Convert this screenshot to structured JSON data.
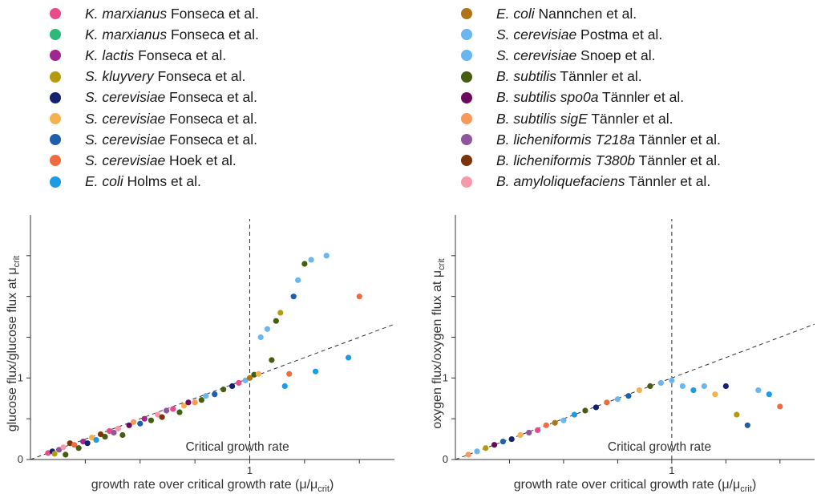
{
  "legend_left": [
    {
      "species": "K. marxianus",
      "source": " Fonseca et al.",
      "color": "#e84a8a"
    },
    {
      "species": "K. marxianus",
      "source": " Fonseca et al.",
      "color": "#2cba7a"
    },
    {
      "species": "K. lactis",
      "source": " Fonseca et al.",
      "color": "#a0278f"
    },
    {
      "species": "S. kluyvery",
      "source": " Fonseca et al.",
      "color": "#b59a0f"
    },
    {
      "species": "S. cerevisiae",
      "source": " Fonseca et al.",
      "color": "#13216e"
    },
    {
      "species": "S. cerevisiae",
      "source": " Fonseca et al.",
      "color": "#f7b04f"
    },
    {
      "species": "S. cerevisiae",
      "source": " Fonseca et al.",
      "color": "#1d5fad"
    },
    {
      "species": "S. cerevisiae",
      "source": " Hoek et al.",
      "color": "#ee6c3e"
    },
    {
      "species": "E. coli",
      "source": " Holms et al.",
      "color": "#1c9be6"
    }
  ],
  "legend_right": [
    {
      "species": "E. coli",
      "source": " Nannchen et al.",
      "color": "#b07418"
    },
    {
      "species": "S. cerevisiae",
      "source": " Postma et al.",
      "color": "#69b6f0"
    },
    {
      "species": "S. cerevisiae",
      "source": " Snoep et al.",
      "color": "#69b6f0"
    },
    {
      "species": "B. subtilis",
      "source": " Tännler et al.",
      "color": "#455e0f"
    },
    {
      "species": "B. subtilis spo0a",
      "source": " Tännler et al.",
      "color": "#6b0a5c"
    },
    {
      "species": "B. subtilis sigE",
      "source": " Tännler et al.",
      "color": "#f6995a"
    },
    {
      "species": "B. licheniformis T218a",
      "source": " Tännler et al.",
      "color": "#8e579d"
    },
    {
      "species": "B. licheniformis T380b",
      "source": " Tännler et al.",
      "color": "#7b3508"
    },
    {
      "species": "B. amyloliquefaciens",
      "source": " Tännler et al.",
      "color": "#f79aa8"
    }
  ],
  "chart_data": [
    {
      "type": "scatter",
      "xlabel": "growth rate over critical growth rate (μ/μ",
      "xlabel_sub": "crit",
      "xlabel_end": ")",
      "ylabel": "glucose flux/glucose flux at μ",
      "ylabel_sub": "crit",
      "xlim": [
        0,
        1.66
      ],
      "ylim": [
        0,
        3.0
      ],
      "x_ticks": [
        0.25,
        0.5,
        0.75,
        1,
        1.25,
        1.5
      ],
      "x_tick_labels": [
        "",
        "",
        "",
        "1",
        "",
        ""
      ],
      "y_ticks": [
        0,
        0.5,
        1,
        1.5,
        2,
        2.5
      ],
      "y_tick_labels": [
        "0",
        "",
        "1",
        "",
        "",
        ""
      ],
      "annotation": "Critical growth rate",
      "critical_x": 1,
      "reference_line": {
        "x": [
          0,
          1.66
        ],
        "y": [
          0,
          1.66
        ]
      },
      "points": [
        {
          "x": 0.08,
          "y": 0.08,
          "c": "#e84a8a"
        },
        {
          "x": 0.1,
          "y": 0.1,
          "c": "#13216e"
        },
        {
          "x": 0.11,
          "y": 0.07,
          "c": "#b59a0f"
        },
        {
          "x": 0.13,
          "y": 0.12,
          "c": "#8e579d"
        },
        {
          "x": 0.15,
          "y": 0.15,
          "c": "#f79aa8"
        },
        {
          "x": 0.16,
          "y": 0.06,
          "c": "#455e0f"
        },
        {
          "x": 0.18,
          "y": 0.2,
          "c": "#7b3508"
        },
        {
          "x": 0.2,
          "y": 0.18,
          "c": "#ee6c3e"
        },
        {
          "x": 0.22,
          "y": 0.14,
          "c": "#455e0f"
        },
        {
          "x": 0.24,
          "y": 0.22,
          "c": "#a0278f"
        },
        {
          "x": 0.26,
          "y": 0.2,
          "c": "#13216e"
        },
        {
          "x": 0.28,
          "y": 0.27,
          "c": "#f7b04f"
        },
        {
          "x": 0.3,
          "y": 0.24,
          "c": "#1c9be6"
        },
        {
          "x": 0.32,
          "y": 0.31,
          "c": "#7b3508"
        },
        {
          "x": 0.34,
          "y": 0.28,
          "c": "#455e0f"
        },
        {
          "x": 0.36,
          "y": 0.35,
          "c": "#e84a8a"
        },
        {
          "x": 0.38,
          "y": 0.33,
          "c": "#8e579d"
        },
        {
          "x": 0.4,
          "y": 0.38,
          "c": "#f79aa8"
        },
        {
          "x": 0.42,
          "y": 0.3,
          "c": "#455e0f"
        },
        {
          "x": 0.45,
          "y": 0.42,
          "c": "#6b0a5c"
        },
        {
          "x": 0.47,
          "y": 0.46,
          "c": "#f6995a"
        },
        {
          "x": 0.5,
          "y": 0.44,
          "c": "#1d5fad"
        },
        {
          "x": 0.52,
          "y": 0.5,
          "c": "#a0278f"
        },
        {
          "x": 0.55,
          "y": 0.48,
          "c": "#455e0f"
        },
        {
          "x": 0.58,
          "y": 0.55,
          "c": "#f79aa8"
        },
        {
          "x": 0.6,
          "y": 0.52,
          "c": "#7b3508"
        },
        {
          "x": 0.62,
          "y": 0.6,
          "c": "#8e579d"
        },
        {
          "x": 0.65,
          "y": 0.62,
          "c": "#e84a8a"
        },
        {
          "x": 0.68,
          "y": 0.58,
          "c": "#455e0f"
        },
        {
          "x": 0.7,
          "y": 0.66,
          "c": "#f7b04f"
        },
        {
          "x": 0.72,
          "y": 0.7,
          "c": "#6b0a5c"
        },
        {
          "x": 0.75,
          "y": 0.7,
          "c": "#f6995a"
        },
        {
          "x": 0.78,
          "y": 0.73,
          "c": "#455e0f"
        },
        {
          "x": 0.8,
          "y": 0.78,
          "c": "#69b6f0"
        },
        {
          "x": 0.84,
          "y": 0.8,
          "c": "#1d5fad"
        },
        {
          "x": 0.88,
          "y": 0.86,
          "c": "#455e0f"
        },
        {
          "x": 0.92,
          "y": 0.9,
          "c": "#13216e"
        },
        {
          "x": 0.95,
          "y": 0.94,
          "c": "#e84a8a"
        },
        {
          "x": 0.98,
          "y": 0.97,
          "c": "#69b6f0"
        },
        {
          "x": 1.0,
          "y": 1.0,
          "c": "#b07418"
        },
        {
          "x": 1.02,
          "y": 1.04,
          "c": "#455e0f"
        },
        {
          "x": 1.04,
          "y": 1.05,
          "c": "#f7b04f"
        },
        {
          "x": 1.05,
          "y": 1.5,
          "c": "#69b6f0"
        },
        {
          "x": 1.08,
          "y": 1.6,
          "c": "#69b6f0"
        },
        {
          "x": 1.1,
          "y": 1.22,
          "c": "#455e0f"
        },
        {
          "x": 1.12,
          "y": 1.7,
          "c": "#455e0f"
        },
        {
          "x": 1.14,
          "y": 1.8,
          "c": "#b59a0f"
        },
        {
          "x": 1.16,
          "y": 0.9,
          "c": "#1c9be6"
        },
        {
          "x": 1.18,
          "y": 1.05,
          "c": "#ee6c3e"
        },
        {
          "x": 1.2,
          "y": 2.0,
          "c": "#1d5fad"
        },
        {
          "x": 1.22,
          "y": 2.2,
          "c": "#69b6f0"
        },
        {
          "x": 1.25,
          "y": 2.4,
          "c": "#455e0f"
        },
        {
          "x": 1.28,
          "y": 2.45,
          "c": "#69b6f0"
        },
        {
          "x": 1.3,
          "y": 1.08,
          "c": "#1c9be6"
        },
        {
          "x": 1.35,
          "y": 2.5,
          "c": "#69b6f0"
        },
        {
          "x": 1.45,
          "y": 1.25,
          "c": "#1c9be6"
        },
        {
          "x": 1.5,
          "y": 2.0,
          "c": "#ee6c3e"
        }
      ]
    },
    {
      "type": "scatter",
      "xlabel": "growth rate over critical growth rate (μ/μ",
      "xlabel_sub": "crit",
      "xlabel_end": ")",
      "ylabel": "oxygen flux/oxygen flux at μ",
      "ylabel_sub": "crit",
      "xlim": [
        0,
        1.66
      ],
      "ylim": [
        0,
        3.0
      ],
      "x_ticks": [
        0.25,
        0.5,
        0.75,
        1,
        1.25,
        1.5
      ],
      "x_tick_labels": [
        "",
        "",
        "",
        "1",
        "",
        ""
      ],
      "y_ticks": [
        0,
        0.5,
        1,
        1.5,
        2,
        2.5
      ],
      "y_tick_labels": [
        "0",
        "",
        "1",
        "",
        "",
        ""
      ],
      "annotation": "Critical growth rate",
      "critical_x": 1,
      "reference_line": {
        "x": [
          0,
          1.66
        ],
        "y": [
          0,
          1.66
        ]
      },
      "points": [
        {
          "x": 0.06,
          "y": 0.06,
          "c": "#f6995a"
        },
        {
          "x": 0.1,
          "y": 0.1,
          "c": "#69b6f0"
        },
        {
          "x": 0.14,
          "y": 0.14,
          "c": "#b59a0f"
        },
        {
          "x": 0.18,
          "y": 0.18,
          "c": "#6b0a5c"
        },
        {
          "x": 0.22,
          "y": 0.22,
          "c": "#1d5fad"
        },
        {
          "x": 0.26,
          "y": 0.25,
          "c": "#13216e"
        },
        {
          "x": 0.3,
          "y": 0.3,
          "c": "#f7b04f"
        },
        {
          "x": 0.34,
          "y": 0.33,
          "c": "#8e579d"
        },
        {
          "x": 0.38,
          "y": 0.36,
          "c": "#e84a8a"
        },
        {
          "x": 0.42,
          "y": 0.42,
          "c": "#ee6c3e"
        },
        {
          "x": 0.46,
          "y": 0.45,
          "c": "#b07418"
        },
        {
          "x": 0.5,
          "y": 0.48,
          "c": "#69b6f0"
        },
        {
          "x": 0.55,
          "y": 0.55,
          "c": "#1c9be6"
        },
        {
          "x": 0.6,
          "y": 0.6,
          "c": "#455e0f"
        },
        {
          "x": 0.65,
          "y": 0.64,
          "c": "#13216e"
        },
        {
          "x": 0.7,
          "y": 0.7,
          "c": "#ee6c3e"
        },
        {
          "x": 0.75,
          "y": 0.74,
          "c": "#69b6f0"
        },
        {
          "x": 0.8,
          "y": 0.78,
          "c": "#1d5fad"
        },
        {
          "x": 0.85,
          "y": 0.85,
          "c": "#f7b04f"
        },
        {
          "x": 0.9,
          "y": 0.9,
          "c": "#455e0f"
        },
        {
          "x": 0.95,
          "y": 0.94,
          "c": "#69b6f0"
        },
        {
          "x": 1.0,
          "y": 0.97,
          "c": "#69b6f0"
        },
        {
          "x": 1.05,
          "y": 0.9,
          "c": "#69b6f0"
        },
        {
          "x": 1.1,
          "y": 0.85,
          "c": "#1c9be6"
        },
        {
          "x": 1.15,
          "y": 0.9,
          "c": "#69b6f0"
        },
        {
          "x": 1.2,
          "y": 0.8,
          "c": "#f7b04f"
        },
        {
          "x": 1.25,
          "y": 0.9,
          "c": "#13216e"
        },
        {
          "x": 1.3,
          "y": 0.55,
          "c": "#b59a0f"
        },
        {
          "x": 1.35,
          "y": 0.42,
          "c": "#1d5fad"
        },
        {
          "x": 1.4,
          "y": 0.85,
          "c": "#69b6f0"
        },
        {
          "x": 1.45,
          "y": 0.8,
          "c": "#1c9be6"
        },
        {
          "x": 1.5,
          "y": 0.65,
          "c": "#ee6c3e"
        }
      ]
    }
  ]
}
